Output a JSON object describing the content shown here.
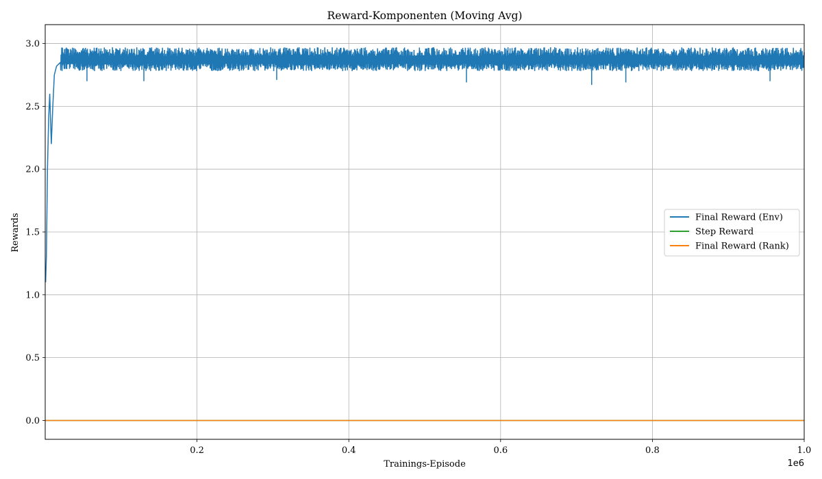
{
  "chart_data": {
    "type": "line",
    "title": "Reward-Komponenten (Moving Avg)",
    "xlabel": "Trainings-Episode",
    "ylabel": "Rewards",
    "x_offset_label": "1e6",
    "xlim": [
      0,
      1000000
    ],
    "ylim": [
      -0.15,
      3.15
    ],
    "x_ticks": [
      0.2,
      0.4,
      0.6,
      0.8,
      1.0
    ],
    "x_tick_labels": [
      "0.2",
      "0.4",
      "0.6",
      "0.8",
      "1.0"
    ],
    "y_ticks": [
      0.0,
      0.5,
      1.0,
      1.5,
      2.0,
      2.5,
      3.0
    ],
    "y_tick_labels": [
      "0.0",
      "0.5",
      "1.0",
      "1.5",
      "2.0",
      "2.5",
      "3.0"
    ],
    "grid": true,
    "legend_position": "center-right",
    "series": [
      {
        "name": "Final Reward (Env)",
        "color": "#1f77b4",
        "points": [
          [
            500,
            1.1
          ],
          [
            1500,
            1.3
          ],
          [
            3000,
            2.0
          ],
          [
            4500,
            2.4
          ],
          [
            6000,
            2.6
          ],
          [
            8000,
            2.2
          ],
          [
            10000,
            2.5
          ],
          [
            12000,
            2.75
          ],
          [
            15000,
            2.82
          ],
          [
            20000,
            2.85
          ],
          [
            50000,
            2.86
          ],
          [
            100000,
            2.86
          ],
          [
            200000,
            2.87
          ],
          [
            300000,
            2.87
          ],
          [
            400000,
            2.87
          ],
          [
            500000,
            2.87
          ],
          [
            600000,
            2.87
          ],
          [
            700000,
            2.87
          ],
          [
            800000,
            2.87
          ],
          [
            900000,
            2.87
          ],
          [
            1000000,
            2.87
          ]
        ],
        "band_low": 2.78,
        "band_high": 2.97,
        "dips": [
          [
            55000,
            2.7
          ],
          [
            130000,
            2.7
          ],
          [
            305000,
            2.71
          ],
          [
            555000,
            2.69
          ],
          [
            720000,
            2.67
          ],
          [
            765000,
            2.69
          ],
          [
            955000,
            2.7
          ]
        ]
      },
      {
        "name": "Step Reward",
        "color": "#2ca02c",
        "points": [
          [
            0,
            0.0
          ],
          [
            1000000,
            0.0
          ]
        ]
      },
      {
        "name": "Final Reward (Rank)",
        "color": "#ff7f0e",
        "points": [
          [
            0,
            0.0
          ],
          [
            1000000,
            0.0
          ]
        ]
      }
    ]
  }
}
